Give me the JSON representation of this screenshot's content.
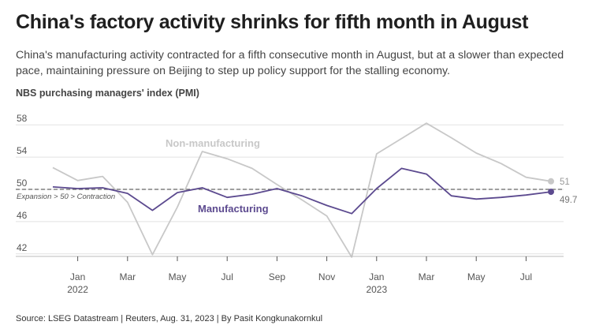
{
  "header": {
    "title": "China's factory activity shrinks for fifth month in August",
    "subtitle": "China's manufacturing activity contracted for a fifth consecutive month in August, but at a slower than expected pace, maintaining pressure on Beijing to step up policy support for the stalling economy."
  },
  "footer": {
    "source": "Source: LSEG Datastream | Reuters, Aug. 31, 2023 | By Pasit Kongkunakornkul"
  },
  "chart_data": {
    "type": "line",
    "ylabel": "NBS purchasing managers' index (PMI)",
    "ylim": [
      41,
      59
    ],
    "yticks": [
      42,
      46,
      50,
      54,
      58
    ],
    "x": [
      "2021-12",
      "2022-01",
      "2022-02",
      "2022-03",
      "2022-04",
      "2022-05",
      "2022-06",
      "2022-07",
      "2022-08",
      "2022-09",
      "2022-10",
      "2022-11",
      "2022-12",
      "2023-01",
      "2023-02",
      "2023-03",
      "2023-04",
      "2023-05",
      "2023-06",
      "2023-07",
      "2023-08"
    ],
    "xticks": [
      {
        "label": "Jan",
        "year": "2022",
        "index": 1
      },
      {
        "label": "Mar",
        "index": 3
      },
      {
        "label": "May",
        "index": 5
      },
      {
        "label": "Jul",
        "index": 7
      },
      {
        "label": "Sep",
        "index": 9
      },
      {
        "label": "Nov",
        "index": 11
      },
      {
        "label": "Jan",
        "year": "2023",
        "index": 13
      },
      {
        "label": "Mar",
        "index": 15
      },
      {
        "label": "May",
        "index": 17
      },
      {
        "label": "Jul",
        "index": 19
      }
    ],
    "reference_line": {
      "value": 50,
      "label": "Expansion > 50 > Contraction"
    },
    "grid": true,
    "series": [
      {
        "name": "Non-manufacturing",
        "color": "#c8c8c8",
        "values": [
          52.7,
          51.1,
          51.6,
          48.4,
          41.9,
          47.8,
          54.7,
          53.8,
          52.6,
          50.6,
          48.7,
          46.7,
          41.6,
          54.4,
          56.3,
          58.2,
          56.4,
          54.5,
          53.2,
          51.5,
          51.0
        ],
        "end_label": "51"
      },
      {
        "name": "Manufacturing",
        "color": "#5c4a8f",
        "values": [
          50.3,
          50.1,
          50.2,
          49.5,
          47.4,
          49.6,
          50.2,
          49.0,
          49.4,
          50.1,
          49.2,
          48.0,
          47.0,
          50.1,
          52.6,
          51.9,
          49.2,
          48.8,
          49.0,
          49.3,
          49.7
        ],
        "end_label": "49.7"
      }
    ]
  }
}
